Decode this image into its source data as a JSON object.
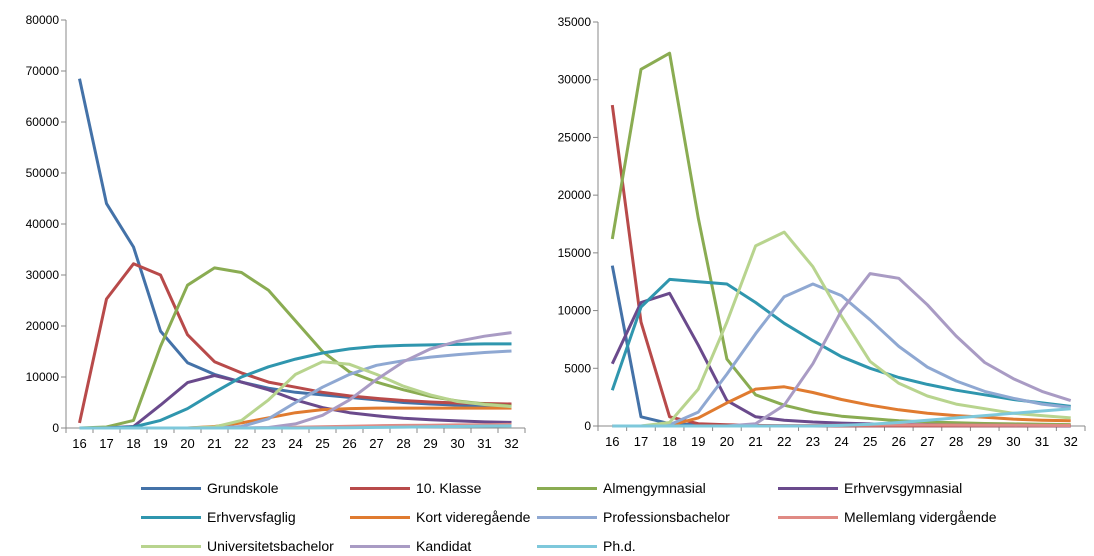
{
  "chart_data": [
    {
      "type": "line",
      "title": "",
      "xlabel": "",
      "ylabel": "",
      "x": [
        16,
        17,
        18,
        19,
        20,
        21,
        22,
        23,
        24,
        25,
        26,
        27,
        28,
        29,
        30,
        31,
        32
      ],
      "ylim": [
        0,
        80000
      ],
      "yticks": [
        0,
        10000,
        20000,
        30000,
        40000,
        50000,
        60000,
        70000,
        80000
      ],
      "grid": false,
      "series": [
        {
          "name": "Grundskole",
          "color": "#4472a8",
          "values": [
            68500,
            44000,
            35500,
            19000,
            12800,
            10500,
            9000,
            7800,
            7000,
            6500,
            6000,
            5500,
            5000,
            4700,
            4500,
            4200,
            4000
          ]
        },
        {
          "name": "10. Klasse",
          "color": "#b84a4a",
          "values": [
            1000,
            25300,
            32200,
            30000,
            18300,
            13000,
            10800,
            9000,
            8000,
            7000,
            6300,
            5800,
            5400,
            5100,
            4900,
            4800,
            4700
          ]
        },
        {
          "name": "Almengymnasial",
          "color": "#8aac52",
          "values": [
            0,
            200,
            1500,
            16000,
            28000,
            31400,
            30500,
            27000,
            21000,
            15000,
            11000,
            9000,
            7500,
            6200,
            5300,
            4700,
            4300
          ]
        },
        {
          "name": "Erhvervsgymnasial",
          "color": "#6a4a8c",
          "values": [
            0,
            0,
            300,
            4500,
            8900,
            10300,
            9000,
            7500,
            5500,
            4000,
            3000,
            2400,
            1900,
            1600,
            1400,
            1200,
            1100
          ]
        },
        {
          "name": "Erhvervsfaglig",
          "color": "#2f96ae",
          "values": [
            0,
            0,
            200,
            1500,
            3800,
            7000,
            10000,
            12000,
            13500,
            14700,
            15500,
            16000,
            16200,
            16300,
            16400,
            16500,
            16500
          ]
        },
        {
          "name": "Kort videregående",
          "color": "#e07b30",
          "values": [
            0,
            0,
            0,
            0,
            0,
            300,
            1000,
            2000,
            3000,
            3600,
            3800,
            3900,
            3900,
            3900,
            3900,
            3900,
            3900
          ]
        },
        {
          "name": "Professionsbachelor",
          "color": "#8fa8d2",
          "values": [
            0,
            0,
            0,
            0,
            0,
            0,
            300,
            1800,
            5000,
            8000,
            10500,
            12300,
            13200,
            13900,
            14400,
            14800,
            15100
          ]
        },
        {
          "name": "Mellemlang vidergående",
          "color": "#e08a84",
          "values": [
            0,
            0,
            0,
            0,
            0,
            0,
            0,
            50,
            150,
            250,
            350,
            450,
            500,
            550,
            600,
            650,
            700
          ]
        },
        {
          "name": "Universitetsbachelor",
          "color": "#b8d48e",
          "values": [
            0,
            0,
            0,
            0,
            0,
            200,
            1500,
            5500,
            10500,
            13000,
            12500,
            10500,
            8200,
            6500,
            5200,
            4600,
            4200
          ]
        },
        {
          "name": "Kandidat",
          "color": "#a99bc4",
          "values": [
            0,
            0,
            0,
            0,
            0,
            0,
            0,
            100,
            800,
            2500,
            5500,
            9500,
            13000,
            15500,
            17000,
            18000,
            18700
          ]
        },
        {
          "name": "Ph.d.",
          "color": "#7ec8db",
          "values": [
            0,
            0,
            0,
            0,
            0,
            0,
            0,
            0,
            0,
            20,
            60,
            110,
            170,
            240,
            300,
            370,
            420
          ]
        }
      ]
    },
    {
      "type": "line",
      "title": "",
      "xlabel": "",
      "ylabel": "",
      "x": [
        16,
        17,
        18,
        19,
        20,
        21,
        22,
        23,
        24,
        25,
        26,
        27,
        28,
        29,
        30,
        31,
        32
      ],
      "ylim": [
        0,
        35000
      ],
      "yticks": [
        0,
        5000,
        10000,
        15000,
        20000,
        25000,
        30000,
        35000
      ],
      "grid": false,
      "series": [
        {
          "name": "Grundskole",
          "color": "#4472a8",
          "values": [
            13900,
            800,
            200,
            100,
            50,
            30,
            20,
            10,
            10,
            10,
            10,
            10,
            10,
            10,
            10,
            10,
            10
          ]
        },
        {
          "name": "10. Klasse",
          "color": "#b84a4a",
          "values": [
            27800,
            9000,
            800,
            200,
            100,
            50,
            30,
            20,
            10,
            10,
            10,
            10,
            10,
            10,
            10,
            10,
            10
          ]
        },
        {
          "name": "Almengymnasial",
          "color": "#8aac52",
          "values": [
            16200,
            30900,
            32300,
            18000,
            5800,
            2700,
            1800,
            1200,
            850,
            650,
            450,
            350,
            280,
            220,
            180,
            150,
            120
          ]
        },
        {
          "name": "Erhvervsgymnasial",
          "color": "#6a4a8c",
          "values": [
            5400,
            10700,
            11500,
            7000,
            2200,
            800,
            500,
            350,
            250,
            180,
            130,
            100,
            80,
            60,
            50,
            40,
            30
          ]
        },
        {
          "name": "Erhvervsfaglig",
          "color": "#2f96ae",
          "values": [
            3100,
            10300,
            12700,
            12500,
            12300,
            10700,
            8900,
            7400,
            6000,
            5000,
            4200,
            3600,
            3100,
            2700,
            2300,
            2000,
            1700
          ]
        },
        {
          "name": "Kort videregående",
          "color": "#e07b30",
          "values": [
            0,
            0,
            50,
            700,
            2000,
            3200,
            3400,
            2900,
            2300,
            1800,
            1400,
            1100,
            900,
            750,
            600,
            500,
            450
          ]
        },
        {
          "name": "Professionsbachelor",
          "color": "#8fa8d2",
          "values": [
            0,
            0,
            100,
            1200,
            4500,
            8000,
            11200,
            12300,
            11300,
            9200,
            6900,
            5100,
            3900,
            3000,
            2400,
            1900,
            1600
          ]
        },
        {
          "name": "Mellemlang vidergående",
          "color": "#e08a84",
          "values": [
            0,
            0,
            0,
            0,
            0,
            10,
            20,
            40,
            60,
            80,
            90,
            90,
            80,
            70,
            60,
            50,
            40
          ]
        },
        {
          "name": "Universitetsbachelor",
          "color": "#b8d48e",
          "values": [
            0,
            0,
            300,
            3200,
            9000,
            15600,
            16800,
            13800,
            9500,
            5600,
            3700,
            2600,
            1900,
            1500,
            1100,
            900,
            700
          ]
        },
        {
          "name": "Kandidat",
          "color": "#a99bc4",
          "values": [
            0,
            0,
            0,
            0,
            0,
            200,
            1800,
            5400,
            10000,
            13200,
            12800,
            10500,
            7800,
            5500,
            4100,
            3000,
            2200
          ]
        },
        {
          "name": "Ph.d.",
          "color": "#7ec8db",
          "values": [
            0,
            0,
            0,
            0,
            0,
            0,
            0,
            0,
            50,
            150,
            300,
            500,
            700,
            900,
            1100,
            1300,
            1500
          ]
        }
      ]
    }
  ],
  "legend": {
    "items": [
      {
        "label": "Grundskole",
        "color": "#4472a8"
      },
      {
        "label": "10. Klasse",
        "color": "#b84a4a"
      },
      {
        "label": "Almengymnasial",
        "color": "#8aac52"
      },
      {
        "label": "Erhvervsgymnasial",
        "color": "#6a4a8c"
      },
      {
        "label": "Erhvervsfaglig",
        "color": "#2f96ae"
      },
      {
        "label": "Kort videregående",
        "color": "#e07b30"
      },
      {
        "label": "Professionsbachelor",
        "color": "#8fa8d2"
      },
      {
        "label": "Mellemlang vidergående",
        "color": "#e08a84"
      },
      {
        "label": "Universitetsbachelor",
        "color": "#b8d48e"
      },
      {
        "label": "Kandidat",
        "color": "#a99bc4"
      },
      {
        "label": "Ph.d.",
        "color": "#7ec8db"
      }
    ]
  }
}
